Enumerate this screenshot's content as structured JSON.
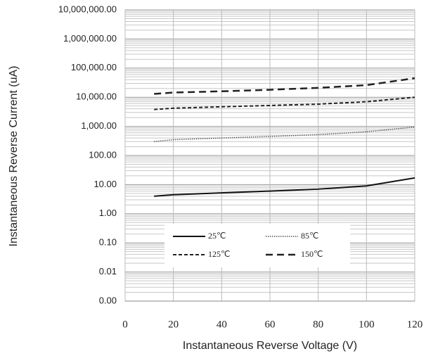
{
  "chart_data": {
    "type": "line",
    "x_label": "Instantaneous Reverse Voltage (V)",
    "y_label": "Instantaneous Reverse Current (uA)",
    "log_y": true,
    "grid": true,
    "minor_grid": true,
    "legend": "lower center",
    "xlim": [
      0,
      120
    ],
    "xticks": [
      0,
      20,
      40,
      60,
      80,
      100,
      120
    ],
    "ylim": [
      0.001,
      10000000
    ],
    "yticks": [
      {
        "value": 0.001,
        "label": "0.00"
      },
      {
        "value": 0.01,
        "label": "0.01"
      },
      {
        "value": 0.1,
        "label": "0.10"
      },
      {
        "value": 1,
        "label": "1.00"
      },
      {
        "value": 10,
        "label": "10.00"
      },
      {
        "value": 100,
        "label": "100.00"
      },
      {
        "value": 1000,
        "label": "1,000.00"
      },
      {
        "value": 10000,
        "label": "10,000.00"
      },
      {
        "value": 100000,
        "label": "100,000.00"
      },
      {
        "value": 1000000,
        "label": "1,000,000.00"
      },
      {
        "value": 10000000,
        "label": "10,000,000.00"
      }
    ],
    "x": [
      12,
      20,
      40,
      60,
      80,
      100,
      120
    ],
    "series": [
      {
        "name": "25℃",
        "color": "#111111",
        "dash": "solid",
        "values": [
          4,
          4.5,
          5.2,
          6,
          7,
          9,
          17
        ]
      },
      {
        "name": "85℃",
        "color": "#555555",
        "dash": "dotted",
        "values": [
          300,
          350,
          400,
          450,
          520,
          650,
          950
        ]
      },
      {
        "name": "125℃",
        "color": "#222222",
        "dash": "dashed",
        "values": [
          3800,
          4200,
          4700,
          5200,
          5800,
          7000,
          10000
        ]
      },
      {
        "name": "150℃",
        "color": "#222222",
        "dash": "longdash",
        "values": [
          13000,
          14500,
          16000,
          18000,
          21000,
          26000,
          45000
        ]
      }
    ]
  }
}
